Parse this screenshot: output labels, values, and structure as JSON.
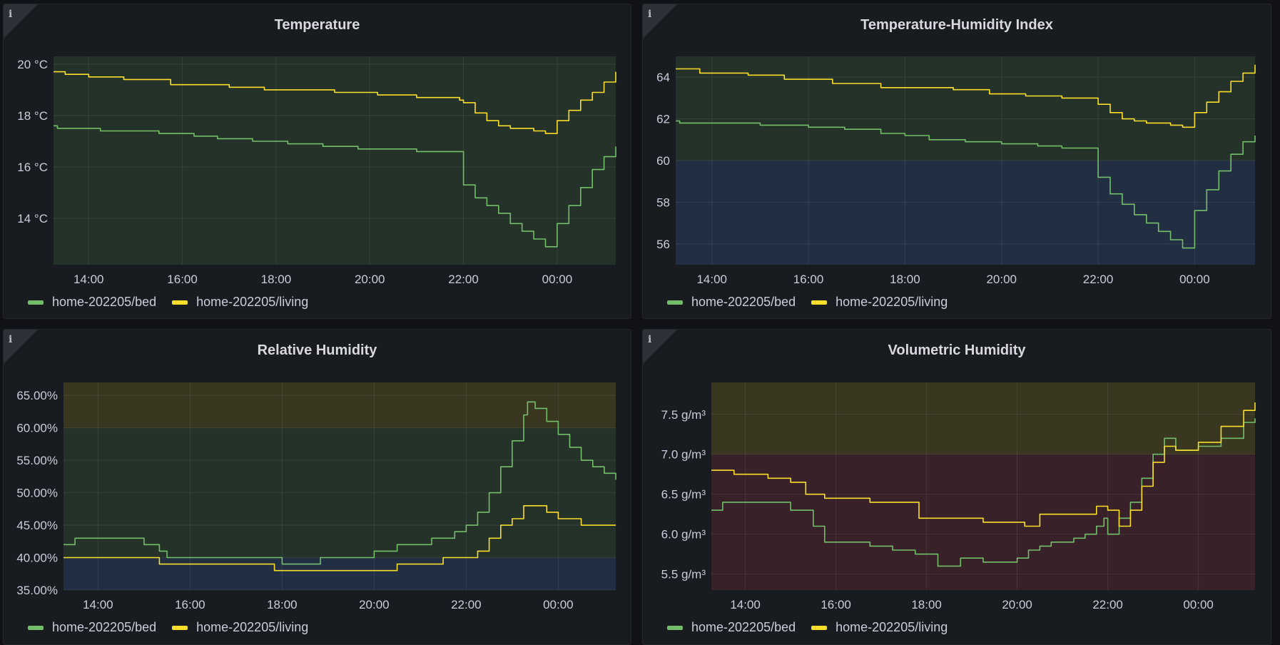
{
  "series_names": [
    "home-202205/bed",
    "home-202205/living"
  ],
  "colors": {
    "bed": "#73bf69",
    "living": "#fade2a"
  },
  "x_ticks": [
    "14:00",
    "16:00",
    "18:00",
    "20:00",
    "22:00",
    "00:00"
  ],
  "chart_data": [
    {
      "type": "line",
      "title": "Temperature",
      "unit": "°C",
      "x_range": [
        "13:15",
        "01:15"
      ],
      "ylim": [
        12.2,
        20.3
      ],
      "y_ticks": [
        {
          "v": 20,
          "label": "20 °C"
        },
        {
          "v": 18,
          "label": "18 °C"
        },
        {
          "v": 16,
          "label": "16 °C"
        },
        {
          "v": 14,
          "label": "14 °C"
        }
      ],
      "thresholds": [
        {
          "from": 12.2,
          "to": 20.3,
          "color": "rgba(115,191,105,0.14)"
        }
      ],
      "series": [
        {
          "name": "home-202205/bed",
          "color": "#73bf69",
          "step": true,
          "points": [
            [
              "13:15",
              17.6
            ],
            [
              "13:20",
              17.5
            ],
            [
              "14:15",
              17.4
            ],
            [
              "15:30",
              17.3
            ],
            [
              "16:15",
              17.2
            ],
            [
              "16:45",
              17.1
            ],
            [
              "17:30",
              17.0
            ],
            [
              "18:15",
              16.9
            ],
            [
              "19:00",
              16.8
            ],
            [
              "19:45",
              16.7
            ],
            [
              "21:00",
              16.6
            ],
            [
              "21:55",
              16.6
            ],
            [
              "22:00",
              15.3
            ],
            [
              "22:15",
              14.8
            ],
            [
              "22:30",
              14.5
            ],
            [
              "22:45",
              14.2
            ],
            [
              "23:00",
              13.8
            ],
            [
              "23:15",
              13.5
            ],
            [
              "23:30",
              13.2
            ],
            [
              "23:45",
              12.9
            ],
            [
              "23:50",
              12.9
            ],
            [
              "24:00",
              13.8
            ],
            [
              "24:15",
              14.5
            ],
            [
              "24:30",
              15.2
            ],
            [
              "24:45",
              15.9
            ],
            [
              "25:00",
              16.4
            ],
            [
              "25:15",
              16.8
            ]
          ]
        },
        {
          "name": "home-202205/living",
          "color": "#fade2a",
          "step": true,
          "points": [
            [
              "13:15",
              19.7
            ],
            [
              "13:30",
              19.6
            ],
            [
              "14:00",
              19.5
            ],
            [
              "14:45",
              19.4
            ],
            [
              "15:45",
              19.2
            ],
            [
              "17:00",
              19.1
            ],
            [
              "17:45",
              19.0
            ],
            [
              "19:15",
              18.9
            ],
            [
              "20:10",
              18.8
            ],
            [
              "21:00",
              18.7
            ],
            [
              "21:55",
              18.6
            ],
            [
              "22:00",
              18.5
            ],
            [
              "22:15",
              18.1
            ],
            [
              "22:30",
              17.8
            ],
            [
              "22:45",
              17.6
            ],
            [
              "23:00",
              17.5
            ],
            [
              "23:30",
              17.4
            ],
            [
              "23:45",
              17.3
            ],
            [
              "23:50",
              17.3
            ],
            [
              "24:00",
              17.8
            ],
            [
              "24:15",
              18.2
            ],
            [
              "24:30",
              18.6
            ],
            [
              "24:45",
              18.9
            ],
            [
              "25:00",
              19.3
            ],
            [
              "25:15",
              19.7
            ]
          ]
        }
      ]
    },
    {
      "type": "line",
      "title": "Temperature-Humidity Index",
      "unit": "",
      "x_range": [
        "13:15",
        "01:15"
      ],
      "ylim": [
        55,
        65
      ],
      "y_ticks": [
        {
          "v": 64,
          "label": "64"
        },
        {
          "v": 62,
          "label": "62"
        },
        {
          "v": 60,
          "label": "60"
        },
        {
          "v": 58,
          "label": "58"
        },
        {
          "v": 56,
          "label": "56"
        }
      ],
      "thresholds": [
        {
          "from": 55,
          "to": 60,
          "color": "rgba(87,148,242,0.17)"
        },
        {
          "from": 60,
          "to": 65,
          "color": "rgba(115,191,105,0.14)"
        }
      ],
      "series": [
        {
          "name": "home-202205/bed",
          "color": "#73bf69",
          "step": true,
          "points": [
            [
              "13:15",
              61.9
            ],
            [
              "13:20",
              61.8
            ],
            [
              "15:00",
              61.7
            ],
            [
              "16:00",
              61.6
            ],
            [
              "16:45",
              61.5
            ],
            [
              "17:30",
              61.3
            ],
            [
              "18:00",
              61.2
            ],
            [
              "18:30",
              61.0
            ],
            [
              "19:15",
              60.9
            ],
            [
              "20:00",
              60.8
            ],
            [
              "20:45",
              60.7
            ],
            [
              "21:15",
              60.6
            ],
            [
              "21:55",
              60.6
            ],
            [
              "22:00",
              59.2
            ],
            [
              "22:15",
              58.4
            ],
            [
              "22:30",
              57.9
            ],
            [
              "22:45",
              57.4
            ],
            [
              "23:00",
              57.0
            ],
            [
              "23:15",
              56.6
            ],
            [
              "23:30",
              56.2
            ],
            [
              "23:45",
              55.8
            ],
            [
              "23:50",
              55.8
            ],
            [
              "24:00",
              57.6
            ],
            [
              "24:15",
              58.6
            ],
            [
              "24:30",
              59.5
            ],
            [
              "24:45",
              60.3
            ],
            [
              "25:00",
              60.9
            ],
            [
              "25:15",
              61.2
            ]
          ]
        },
        {
          "name": "home-202205/living",
          "color": "#fade2a",
          "step": true,
          "points": [
            [
              "13:15",
              64.4
            ],
            [
              "13:45",
              64.2
            ],
            [
              "14:45",
              64.1
            ],
            [
              "15:30",
              63.9
            ],
            [
              "16:30",
              63.7
            ],
            [
              "17:30",
              63.5
            ],
            [
              "19:00",
              63.4
            ],
            [
              "19:45",
              63.2
            ],
            [
              "20:30",
              63.1
            ],
            [
              "21:15",
              63.0
            ],
            [
              "21:55",
              63.0
            ],
            [
              "22:00",
              62.7
            ],
            [
              "22:15",
              62.3
            ],
            [
              "22:30",
              62.0
            ],
            [
              "22:45",
              61.9
            ],
            [
              "23:00",
              61.8
            ],
            [
              "23:30",
              61.7
            ],
            [
              "23:45",
              61.6
            ],
            [
              "24:00",
              62.3
            ],
            [
              "24:15",
              62.8
            ],
            [
              "24:30",
              63.3
            ],
            [
              "24:45",
              63.8
            ],
            [
              "25:00",
              64.2
            ],
            [
              "25:15",
              64.6
            ]
          ]
        }
      ]
    },
    {
      "type": "line",
      "title": "Relative Humidity",
      "unit": "%",
      "x_range": [
        "13:15",
        "01:15"
      ],
      "ylim": [
        35,
        67
      ],
      "y_ticks": [
        {
          "v": 65,
          "label": "65.00%"
        },
        {
          "v": 60,
          "label": "60.00%"
        },
        {
          "v": 55,
          "label": "55.00%"
        },
        {
          "v": 50,
          "label": "50.00%"
        },
        {
          "v": 45,
          "label": "45.00%"
        },
        {
          "v": 40,
          "label": "40.00%"
        },
        {
          "v": 35,
          "label": "35.00%"
        }
      ],
      "thresholds": [
        {
          "from": 35,
          "to": 40,
          "color": "rgba(87,148,242,0.17)"
        },
        {
          "from": 40,
          "to": 60,
          "color": "rgba(115,191,105,0.14)"
        },
        {
          "from": 60,
          "to": 67,
          "color": "rgba(250,222,42,0.15)"
        }
      ],
      "series": [
        {
          "name": "home-202205/bed",
          "color": "#73bf69",
          "step": true,
          "points": [
            [
              "13:15",
              42
            ],
            [
              "13:30",
              43
            ],
            [
              "15:00",
              42
            ],
            [
              "15:20",
              41
            ],
            [
              "15:30",
              40
            ],
            [
              "18:00",
              39
            ],
            [
              "18:50",
              40
            ],
            [
              "20:00",
              41
            ],
            [
              "20:30",
              42
            ],
            [
              "21:15",
              43
            ],
            [
              "21:45",
              44
            ],
            [
              "22:00",
              45
            ],
            [
              "22:15",
              47
            ],
            [
              "22:30",
              50
            ],
            [
              "22:45",
              54
            ],
            [
              "23:00",
              58
            ],
            [
              "23:15",
              62
            ],
            [
              "23:20",
              64
            ],
            [
              "23:30",
              63
            ],
            [
              "23:45",
              61
            ],
            [
              "24:00",
              59
            ],
            [
              "24:15",
              57
            ],
            [
              "24:30",
              55
            ],
            [
              "24:45",
              54
            ],
            [
              "25:00",
              53
            ],
            [
              "25:15",
              52
            ]
          ]
        },
        {
          "name": "home-202205/living",
          "color": "#fade2a",
          "step": true,
          "points": [
            [
              "13:15",
              40
            ],
            [
              "15:20",
              39
            ],
            [
              "17:50",
              38
            ],
            [
              "20:30",
              39
            ],
            [
              "21:30",
              40
            ],
            [
              "22:15",
              41
            ],
            [
              "22:30",
              43
            ],
            [
              "22:45",
              45
            ],
            [
              "23:00",
              46
            ],
            [
              "23:15",
              48
            ],
            [
              "23:45",
              47
            ],
            [
              "24:00",
              46
            ],
            [
              "24:30",
              45
            ],
            [
              "25:15",
              45
            ]
          ]
        }
      ]
    },
    {
      "type": "line",
      "title": "Volumetric Humidity",
      "unit": "g/m³",
      "x_range": [
        "13:15",
        "01:15"
      ],
      "ylim": [
        5.3,
        7.9
      ],
      "y_ticks": [
        {
          "v": 7.5,
          "label": "7.5 g/m³"
        },
        {
          "v": 7.0,
          "label": "7.0 g/m³"
        },
        {
          "v": 6.5,
          "label": "6.5 g/m³"
        },
        {
          "v": 6.0,
          "label": "6.0 g/m³"
        },
        {
          "v": 5.5,
          "label": "5.5 g/m³"
        }
      ],
      "thresholds": [
        {
          "from": 5.3,
          "to": 7.0,
          "color": "rgba(242,73,92,0.15)"
        },
        {
          "from": 7.0,
          "to": 7.9,
          "color": "rgba(250,222,42,0.15)"
        }
      ],
      "series": [
        {
          "name": "home-202205/bed",
          "color": "#73bf69",
          "step": true,
          "points": [
            [
              "13:15",
              6.3
            ],
            [
              "13:30",
              6.4
            ],
            [
              "14:15",
              6.4
            ],
            [
              "15:00",
              6.3
            ],
            [
              "15:30",
              6.1
            ],
            [
              "15:45",
              5.9
            ],
            [
              "16:45",
              5.85
            ],
            [
              "17:15",
              5.8
            ],
            [
              "17:45",
              5.75
            ],
            [
              "18:15",
              5.6
            ],
            [
              "18:45",
              5.7
            ],
            [
              "19:15",
              5.65
            ],
            [
              "20:00",
              5.7
            ],
            [
              "20:15",
              5.8
            ],
            [
              "20:30",
              5.85
            ],
            [
              "20:45",
              5.9
            ],
            [
              "21:15",
              5.95
            ],
            [
              "21:30",
              6.0
            ],
            [
              "21:45",
              6.1
            ],
            [
              "21:55",
              6.2
            ],
            [
              "22:00",
              6.0
            ],
            [
              "22:15",
              6.2
            ],
            [
              "22:30",
              6.4
            ],
            [
              "22:45",
              6.7
            ],
            [
              "23:00",
              7.0
            ],
            [
              "23:15",
              7.2
            ],
            [
              "23:30",
              7.05
            ],
            [
              "24:00",
              7.1
            ],
            [
              "24:30",
              7.2
            ],
            [
              "25:00",
              7.4
            ],
            [
              "25:15",
              7.45
            ]
          ]
        },
        {
          "name": "home-202205/living",
          "color": "#fade2a",
          "step": true,
          "points": [
            [
              "13:15",
              6.8
            ],
            [
              "13:45",
              6.75
            ],
            [
              "14:30",
              6.7
            ],
            [
              "15:00",
              6.65
            ],
            [
              "15:20",
              6.5
            ],
            [
              "15:45",
              6.45
            ],
            [
              "16:45",
              6.4
            ],
            [
              "17:50",
              6.2
            ],
            [
              "19:15",
              6.15
            ],
            [
              "20:10",
              6.1
            ],
            [
              "20:30",
              6.25
            ],
            [
              "21:15",
              6.25
            ],
            [
              "21:45",
              6.35
            ],
            [
              "22:00",
              6.3
            ],
            [
              "22:15",
              6.1
            ],
            [
              "22:30",
              6.3
            ],
            [
              "22:45",
              6.6
            ],
            [
              "23:00",
              6.9
            ],
            [
              "23:15",
              7.1
            ],
            [
              "23:30",
              7.05
            ],
            [
              "24:00",
              7.15
            ],
            [
              "24:30",
              7.35
            ],
            [
              "25:00",
              7.55
            ],
            [
              "25:15",
              7.65
            ]
          ]
        }
      ]
    }
  ]
}
